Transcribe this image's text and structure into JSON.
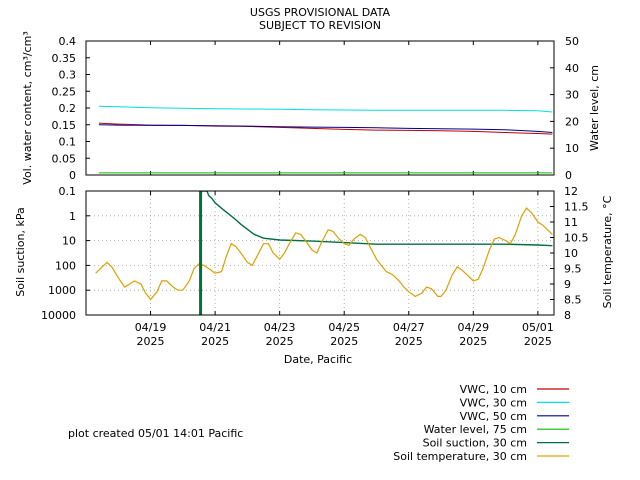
{
  "header": {
    "line1": "USGS PROVISIONAL DATA",
    "line2": "SUBJECT TO REVISION"
  },
  "footer_note": "plot created 05/01 14:01 Pacific",
  "colors": {
    "vwc10": "#c00000",
    "vwc30": "#00e0e0",
    "vwc50": "#00008b",
    "water": "#00c000",
    "suction": "#007040",
    "temp": "#e0a000"
  },
  "chart_data": [
    {
      "type": "line",
      "ylabel": "Vol. water content, cm³/cm³",
      "y2label": "Water level, cm",
      "ylim": [
        0,
        0.4
      ],
      "y2lim": [
        0,
        50
      ],
      "yticks": [
        "0",
        "0.05",
        "0.1",
        "0.15",
        "0.2",
        "0.25",
        "0.3",
        "0.35",
        "0.4"
      ],
      "y2ticks": [
        "0",
        "10",
        "20",
        "30",
        "40",
        "50"
      ],
      "grid": false,
      "series": [
        {
          "name": "VWC, 10 cm",
          "color": "#c00000",
          "axis": "left",
          "x": [
            17.4,
            18.0,
            19.0,
            20.0,
            21.0,
            22.0,
            23.0,
            24.0,
            25.0,
            26.0,
            27.0,
            28.0,
            29.0,
            30.0,
            31.0,
            31.45
          ],
          "y": [
            0.155,
            0.152,
            0.149,
            0.148,
            0.146,
            0.145,
            0.142,
            0.139,
            0.136,
            0.134,
            0.133,
            0.132,
            0.13,
            0.127,
            0.124,
            0.122
          ]
        },
        {
          "name": "VWC, 30 cm",
          "color": "#00e0e0",
          "axis": "left",
          "x": [
            17.4,
            18.0,
            19.0,
            20.0,
            21.0,
            22.0,
            23.0,
            24.0,
            25.0,
            26.0,
            27.0,
            28.0,
            29.0,
            30.0,
            31.0,
            31.45
          ],
          "y": [
            0.205,
            0.204,
            0.201,
            0.199,
            0.198,
            0.197,
            0.196,
            0.195,
            0.194,
            0.193,
            0.193,
            0.193,
            0.193,
            0.193,
            0.192,
            0.188
          ]
        },
        {
          "name": "VWC, 50 cm",
          "color": "#00008b",
          "axis": "left",
          "x": [
            17.4,
            18.0,
            19.0,
            20.0,
            21.0,
            22.0,
            23.0,
            24.0,
            25.0,
            26.0,
            27.0,
            28.0,
            29.0,
            30.0,
            31.0,
            31.45
          ],
          "y": [
            0.15,
            0.149,
            0.148,
            0.148,
            0.147,
            0.146,
            0.144,
            0.143,
            0.142,
            0.141,
            0.139,
            0.138,
            0.137,
            0.135,
            0.13,
            0.127
          ]
        },
        {
          "name": "Water level, 75 cm",
          "color": "#00c000",
          "axis": "right",
          "x": [
            17.4,
            31.45
          ],
          "y": [
            0.8,
            0.8
          ]
        }
      ]
    },
    {
      "type": "line",
      "xlabel": "Date, Pacific",
      "ylabel": "Soil suction, kPa",
      "y2label": "Soil temperature, °C",
      "ylog": true,
      "yreverse": true,
      "ylim": [
        0.1,
        10000
      ],
      "y2lim": [
        8,
        12
      ],
      "yticks": [
        "0.1",
        "1",
        "10",
        "100",
        "1000",
        "10000"
      ],
      "y2ticks": [
        "8",
        "8.5",
        "9",
        "9.5",
        "10",
        "10.5",
        "11",
        "11.5",
        "12"
      ],
      "grid": true,
      "xlim": [
        17.0,
        31.5
      ],
      "xticks": [
        {
          "x": 19,
          "date": "04/19",
          "year": "2025"
        },
        {
          "x": 21,
          "date": "04/21",
          "year": "2025"
        },
        {
          "x": 23,
          "date": "04/23",
          "year": "2025"
        },
        {
          "x": 25,
          "date": "04/25",
          "year": "2025"
        },
        {
          "x": 27,
          "date": "04/27",
          "year": "2025"
        },
        {
          "x": 29,
          "date": "04/29",
          "year": "2025"
        },
        {
          "x": 31,
          "date": "05/01",
          "year": "2025"
        }
      ],
      "series": [
        {
          "name": "Soil suction, 30 cm",
          "color": "#007040",
          "axis": "left",
          "x": [
            20.55,
            20.55,
            20.6,
            20.6,
            20.75,
            20.8,
            20.9,
            21.0,
            21.2,
            21.4,
            21.6,
            21.8,
            22.0,
            22.2,
            22.5,
            23.0,
            24.0,
            25.0,
            26.0,
            27.0,
            28.0,
            29.0,
            30.0,
            31.0,
            31.45
          ],
          "y": [
            10000,
            0.1,
            0.1,
            0.1,
            0.1,
            0.15,
            0.2,
            0.3,
            0.5,
            0.8,
            1.3,
            2.2,
            3.5,
            5.5,
            8,
            9.5,
            10.5,
            12,
            14,
            14,
            14,
            14,
            14,
            15,
            16
          ]
        },
        {
          "name": "Soil temperature, 30 cm",
          "color": "#e0a000",
          "axis": "right",
          "x": [
            17.3,
            17.5,
            17.65,
            17.8,
            18.0,
            18.2,
            18.35,
            18.5,
            18.7,
            18.85,
            19.0,
            19.2,
            19.35,
            19.5,
            19.7,
            19.85,
            20.0,
            20.2,
            20.35,
            20.5,
            20.65,
            20.8,
            21.0,
            21.2,
            21.35,
            21.5,
            21.65,
            21.8,
            22.0,
            22.15,
            22.3,
            22.5,
            22.65,
            22.8,
            23.0,
            23.15,
            23.3,
            23.5,
            23.65,
            23.8,
            24.0,
            24.15,
            24.3,
            24.5,
            24.65,
            24.8,
            25.0,
            25.15,
            25.3,
            25.5,
            25.65,
            25.8,
            26.0,
            26.15,
            26.3,
            26.5,
            26.7,
            26.85,
            27.0,
            27.2,
            27.4,
            27.55,
            27.7,
            27.9,
            28.0,
            28.15,
            28.35,
            28.5,
            28.65,
            28.8,
            29.0,
            29.15,
            29.3,
            29.5,
            29.65,
            29.8,
            30.0,
            30.15,
            30.3,
            30.5,
            30.65,
            30.8,
            31.0,
            31.15,
            31.3,
            31.45
          ],
          "y": [
            9.35,
            9.55,
            9.7,
            9.55,
            9.2,
            8.9,
            9.0,
            9.1,
            9.0,
            8.7,
            8.5,
            8.75,
            9.1,
            9.1,
            8.9,
            8.8,
            8.8,
            9.1,
            9.5,
            9.65,
            9.6,
            9.5,
            9.35,
            9.4,
            9.9,
            10.3,
            10.2,
            10.0,
            9.7,
            9.6,
            9.9,
            10.3,
            10.3,
            10.0,
            9.8,
            10.0,
            10.3,
            10.65,
            10.6,
            10.4,
            10.1,
            10.0,
            10.35,
            10.75,
            10.7,
            10.5,
            10.3,
            10.25,
            10.45,
            10.6,
            10.5,
            10.2,
            9.8,
            9.6,
            9.4,
            9.3,
            9.1,
            8.9,
            8.75,
            8.6,
            8.7,
            8.9,
            8.85,
            8.6,
            8.6,
            8.8,
            9.3,
            9.55,
            9.45,
            9.3,
            9.1,
            9.15,
            9.5,
            10.1,
            10.45,
            10.5,
            10.4,
            10.3,
            10.6,
            11.2,
            11.45,
            11.3,
            11.0,
            10.9,
            10.75,
            10.6
          ]
        }
      ]
    }
  ]
}
